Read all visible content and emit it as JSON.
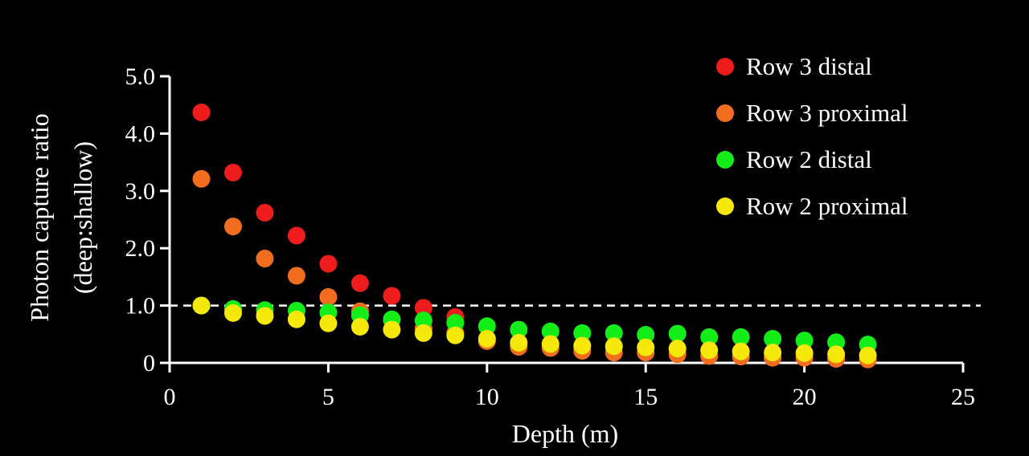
{
  "chart_data": {
    "type": "scatter",
    "title": "",
    "xlabel": "Depth (m)",
    "ylabel_line1": "Photon capture ratio",
    "ylabel_line2": "(deep:shallow)",
    "xlim": [
      0,
      25
    ],
    "ylim": [
      0,
      5
    ],
    "x_ticks": [
      0,
      5,
      10,
      15,
      20,
      25
    ],
    "x_tick_labels": [
      "0",
      "5",
      "10",
      "15",
      "20",
      "25"
    ],
    "y_ticks": [
      0,
      1,
      2,
      3,
      4,
      5
    ],
    "y_tick_labels": [
      "0",
      "1.0",
      "2.0",
      "3.0",
      "4.0",
      "5.0"
    ],
    "reference_line": {
      "y": 1.0,
      "style": "dashed",
      "color": "#ffffff"
    },
    "grid": false,
    "legend_position": "top-right",
    "series": [
      {
        "name": "Row 3 distal",
        "color": "#ee1c1c",
        "x": [
          1,
          2,
          3,
          4,
          5,
          6,
          7,
          8,
          9
        ],
        "y": [
          4.37,
          3.32,
          2.62,
          2.22,
          1.73,
          1.39,
          1.17,
          0.96,
          0.8
        ]
      },
      {
        "name": "Row 3 proximal",
        "color": "#f26d1d",
        "x": [
          1,
          2,
          3,
          4,
          5,
          6,
          7,
          8,
          9,
          10,
          11,
          12,
          13,
          14,
          15,
          16,
          17,
          18,
          19,
          20,
          21,
          22
        ],
        "y": [
          3.21,
          2.38,
          1.82,
          1.52,
          1.15,
          0.9,
          0.75,
          0.6,
          0.52,
          0.38,
          0.28,
          0.26,
          0.21,
          0.18,
          0.18,
          0.15,
          0.12,
          0.11,
          0.09,
          0.09,
          0.07,
          0.06
        ]
      },
      {
        "name": "Row 2 distal",
        "color": "#13ee18",
        "x": [
          1,
          2,
          3,
          4,
          5,
          6,
          7,
          8,
          9,
          10,
          11,
          12,
          13,
          14,
          15,
          16,
          17,
          18,
          19,
          20,
          21,
          22
        ],
        "y": [
          1.0,
          0.94,
          0.92,
          0.91,
          0.88,
          0.83,
          0.76,
          0.74,
          0.7,
          0.64,
          0.58,
          0.55,
          0.52,
          0.52,
          0.49,
          0.51,
          0.45,
          0.45,
          0.42,
          0.39,
          0.36,
          0.32
        ]
      },
      {
        "name": "Row 2 proximal",
        "color": "#f6e80a",
        "x": [
          1,
          2,
          3,
          4,
          5,
          6,
          7,
          8,
          9,
          10,
          11,
          12,
          13,
          14,
          15,
          16,
          17,
          18,
          19,
          20,
          21,
          22
        ],
        "y": [
          1.0,
          0.87,
          0.82,
          0.76,
          0.69,
          0.63,
          0.58,
          0.52,
          0.48,
          0.42,
          0.35,
          0.33,
          0.3,
          0.29,
          0.27,
          0.25,
          0.22,
          0.2,
          0.18,
          0.17,
          0.15,
          0.13
        ]
      }
    ]
  }
}
